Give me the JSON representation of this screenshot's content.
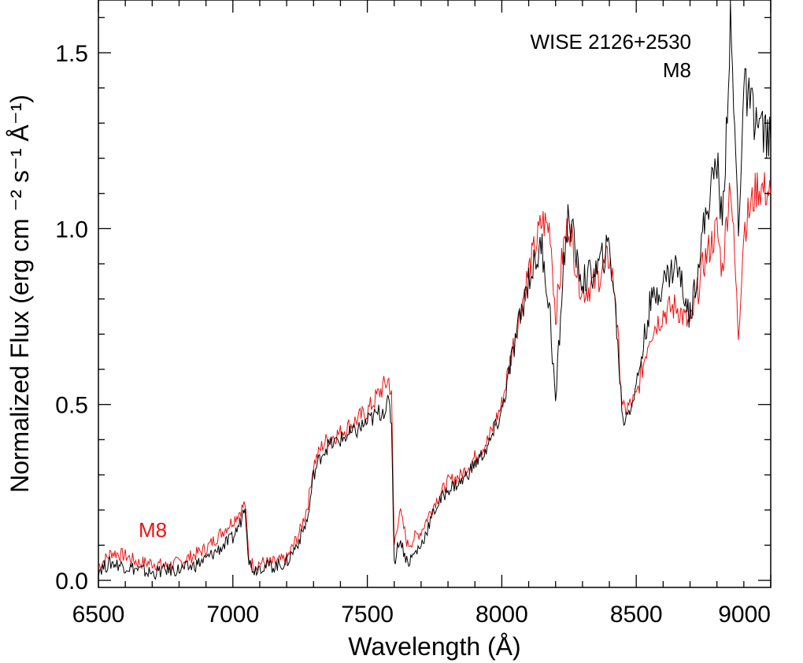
{
  "chart_data": {
    "type": "line",
    "title": "",
    "xlabel": "Wavelength (Å)",
    "ylabel": "Normalized Flux (erg cm ⁻² s⁻¹ Å⁻¹)",
    "xlim": [
      6500,
      9000
    ],
    "ylim": [
      -0.02,
      1.65
    ],
    "x_ticks": [
      6500,
      7000,
      7500,
      8000,
      8500,
      9000
    ],
    "x_tick_labels": [
      "6500",
      "7000",
      "7500",
      "8000",
      "8500",
      "9000"
    ],
    "y_ticks": [
      0.0,
      0.5,
      1.0,
      1.5
    ],
    "y_tick_labels": [
      "0.0",
      "0.5",
      "1.0",
      "1.5"
    ],
    "grid": false,
    "annotations": [
      {
        "text": "WISE 2126+2530",
        "color": "#000000"
      },
      {
        "text": "M8",
        "color": "#000000"
      },
      {
        "text": "M8",
        "color": "#ee1111"
      }
    ],
    "series": [
      {
        "color": "#ee1111",
        "x": [
          6500,
          6550,
          6600,
          6650,
          6700,
          6750,
          6800,
          6850,
          6900,
          6950,
          7000,
          7030,
          7045,
          7060,
          7080,
          7100,
          7150,
          7200,
          7250,
          7280,
          7300,
          7330,
          7350,
          7400,
          7450,
          7500,
          7550,
          7580,
          7590,
          7600,
          7620,
          7650,
          7700,
          7750,
          7800,
          7850,
          7900,
          7950,
          8000,
          8050,
          8100,
          8150,
          8180,
          8200,
          8230,
          8250,
          8280,
          8300,
          8350,
          8400,
          8420,
          8450,
          8480,
          8500,
          8550,
          8600,
          8650,
          8700,
          8750,
          8800,
          8820,
          8850,
          8870,
          8880,
          8900,
          8950,
          9000
        ],
        "y": [
          0.04,
          0.08,
          0.07,
          0.05,
          0.05,
          0.04,
          0.05,
          0.07,
          0.09,
          0.13,
          0.17,
          0.2,
          0.22,
          0.06,
          0.04,
          0.05,
          0.05,
          0.06,
          0.14,
          0.22,
          0.33,
          0.38,
          0.4,
          0.42,
          0.45,
          0.48,
          0.54,
          0.57,
          0.52,
          0.1,
          0.2,
          0.1,
          0.14,
          0.22,
          0.28,
          0.3,
          0.35,
          0.4,
          0.5,
          0.7,
          0.88,
          1.02,
          1.0,
          0.75,
          0.95,
          1.02,
          0.88,
          0.82,
          0.85,
          0.92,
          0.82,
          0.48,
          0.5,
          0.52,
          0.7,
          0.76,
          0.78,
          0.72,
          0.9,
          1.0,
          0.88,
          1.15,
          0.85,
          0.7,
          1.0,
          1.12,
          1.1
        ]
      },
      {
        "color": "#000000",
        "x": [
          6500,
          6550,
          6600,
          6650,
          6700,
          6750,
          6800,
          6850,
          6900,
          6950,
          7000,
          7030,
          7045,
          7060,
          7080,
          7100,
          7150,
          7200,
          7250,
          7280,
          7300,
          7330,
          7350,
          7400,
          7450,
          7500,
          7550,
          7580,
          7590,
          7600,
          7620,
          7650,
          7700,
          7750,
          7800,
          7850,
          7900,
          7950,
          8000,
          8050,
          8100,
          8150,
          8180,
          8200,
          8230,
          8250,
          8280,
          8300,
          8350,
          8400,
          8420,
          8450,
          8480,
          8500,
          8550,
          8600,
          8650,
          8700,
          8750,
          8800,
          8820,
          8850,
          8870,
          8880,
          8900,
          8950,
          9000
        ],
        "y": [
          0.03,
          0.05,
          0.04,
          0.03,
          0.02,
          0.03,
          0.03,
          0.04,
          0.06,
          0.09,
          0.12,
          0.17,
          0.22,
          0.05,
          0.03,
          0.04,
          0.04,
          0.05,
          0.12,
          0.18,
          0.3,
          0.36,
          0.38,
          0.4,
          0.42,
          0.45,
          0.48,
          0.5,
          0.45,
          0.05,
          0.12,
          0.05,
          0.1,
          0.2,
          0.26,
          0.28,
          0.33,
          0.38,
          0.48,
          0.68,
          0.86,
          0.95,
          0.75,
          0.5,
          0.9,
          1.05,
          0.9,
          0.85,
          0.88,
          0.95,
          0.8,
          0.45,
          0.5,
          0.55,
          0.78,
          0.85,
          0.9,
          0.75,
          1.0,
          1.2,
          1.0,
          1.58,
          1.2,
          1.0,
          1.4,
          1.3,
          1.25
        ]
      }
    ]
  }
}
